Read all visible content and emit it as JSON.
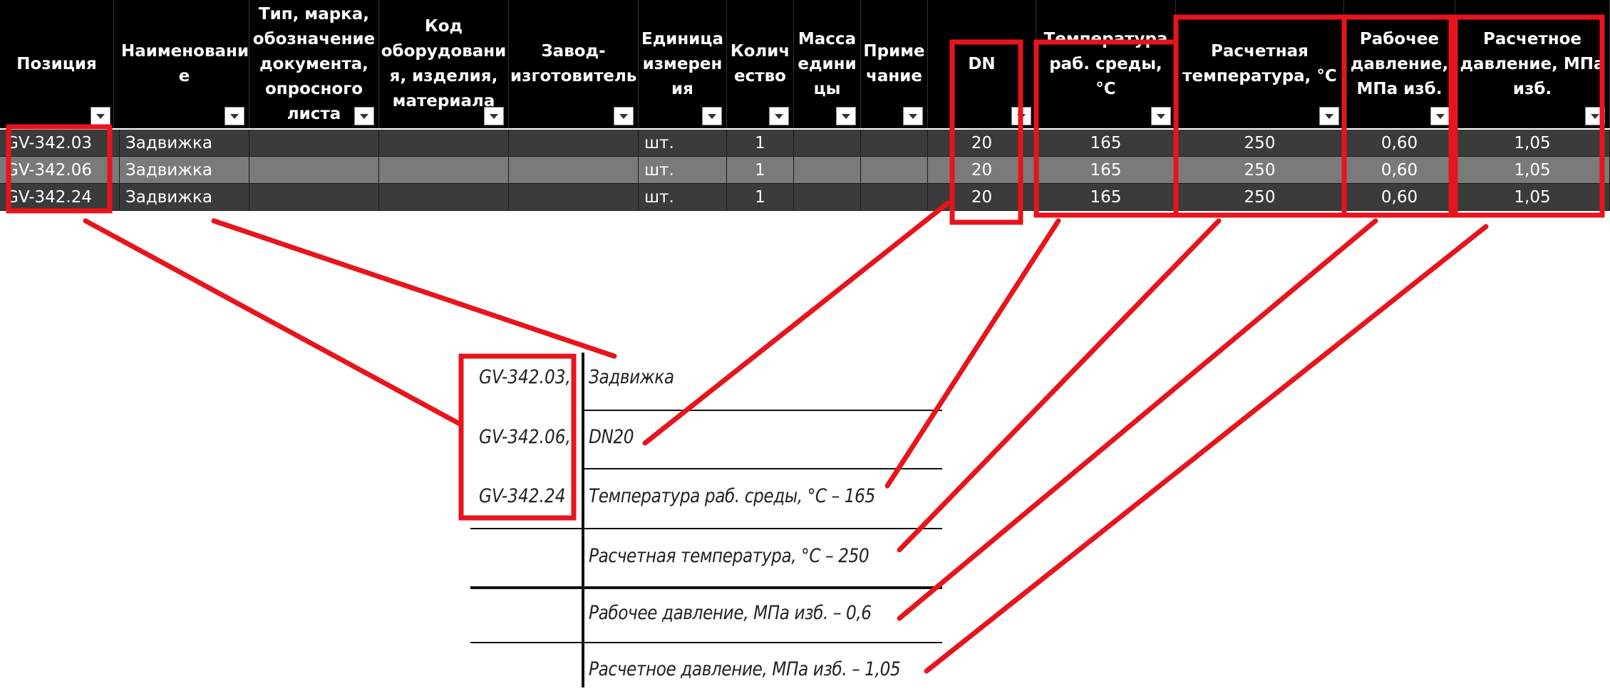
{
  "table": {
    "headers": [
      "Позиция",
      "Наименовани е",
      "Тип, марка, обозначение документа, опросного листа",
      "Код оборудовани я, изделия, материала",
      "Завод-изготовитель",
      "Единица измерен ия",
      "Колич ество",
      "Масса едини цы",
      "Приме чание",
      "DN",
      "Температура раб. среды, °С",
      "Расчетная температура, °С",
      "Рабочее давление, МПа изб.",
      "Расчетное давление, МПа изб."
    ],
    "rows": [
      [
        "GV-342.03",
        "Задвижка",
        "",
        "",
        "",
        "шт.",
        "1",
        "",
        "",
        "20",
        "165",
        "250",
        "0,60",
        "1,05"
      ],
      [
        "GV-342.06",
        "Задвижка",
        "",
        "",
        "",
        "шт.",
        "1",
        "",
        "",
        "20",
        "165",
        "250",
        "0,60",
        "1,05"
      ],
      [
        "GV-342.24",
        "Задвижка",
        "",
        "",
        "",
        "шт.",
        "1",
        "",
        "",
        "20",
        "165",
        "250",
        "0,60",
        "1,05"
      ]
    ],
    "row_colors": [
      "#3b3b3b",
      "#7a7a7a",
      "#3b3b3b"
    ],
    "header_bg": "#000000",
    "highlight_color": "#e8141c"
  },
  "drawing": {
    "positions": [
      "GV-342.03,",
      "GV-342.06,",
      "GV-342.24"
    ],
    "lines": [
      "Задвижка",
      "DN20",
      "Температура раб. среды, °С – 165",
      "Расчетная температура, °С – 250",
      "Рабочее давление, МПа изб. – 0,6",
      "Расчетное давление, МПа изб. – 1,05"
    ]
  }
}
